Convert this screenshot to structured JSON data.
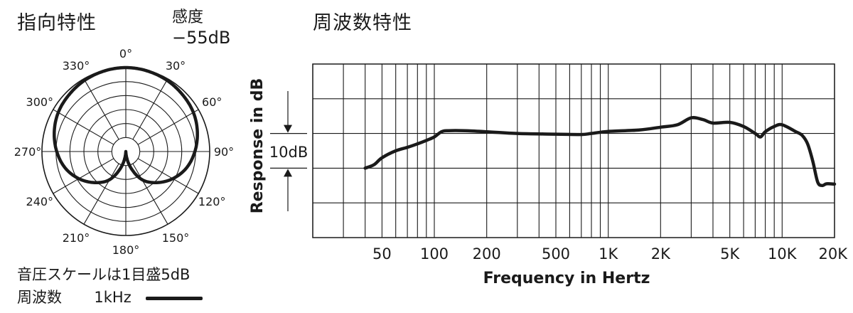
{
  "polar": {
    "title": "指向特性",
    "sensitivity_label": "感度",
    "sensitivity_value": "−55dB",
    "scale_note": "音圧スケールは1目盛5dB",
    "legend_freq_label": "周波数",
    "legend_freq_value": "1kHz"
  },
  "frequency": {
    "title": "周波数特性"
  },
  "chart_data": [
    {
      "type": "polar",
      "title": "指向特性",
      "angle_labels": [
        "0°",
        "30°",
        "60°",
        "90°",
        "120°",
        "150°",
        "180°",
        "210°",
        "240°",
        "270°",
        "300°",
        "330°"
      ],
      "angles_deg": [
        0,
        30,
        60,
        90,
        120,
        150,
        180,
        210,
        240,
        270,
        300,
        330
      ],
      "rings": 6,
      "ring_step_db": 5,
      "series": [
        {
          "angles_deg": [
            0,
            15,
            30,
            45,
            60,
            75,
            90,
            105,
            120,
            135,
            150,
            165,
            180,
            195,
            210,
            225,
            240,
            255,
            270,
            285,
            300,
            315,
            330,
            345
          ],
          "level_db": [
            0,
            -0.2,
            -0.6,
            -1.3,
            -2.1,
            -3.5,
            -5.3,
            -7.5,
            -10.6,
            -14.3,
            -18.4,
            -24.8,
            -30,
            -24.8,
            -18.4,
            -14.3,
            -10.6,
            -7.5,
            -5.3,
            -3.5,
            -2.1,
            -1.3,
            -0.6,
            -0.2
          ]
        }
      ],
      "color": "#1a1a1a"
    },
    {
      "type": "line",
      "title": "周波数特性",
      "xlabel": "Frequency in Hertz",
      "ylabel": "Response in dB",
      "x_scale": "log",
      "xlim": [
        20,
        20000
      ],
      "x_tick_labels": [
        {
          "value": 50,
          "label": "50"
        },
        {
          "value": 100,
          "label": "100"
        },
        {
          "value": 200,
          "label": "200"
        },
        {
          "value": 500,
          "label": "500"
        },
        {
          "value": 1000,
          "label": "1K"
        },
        {
          "value": 2000,
          "label": "2K"
        },
        {
          "value": 5000,
          "label": "5K"
        },
        {
          "value": 10000,
          "label": "10K"
        },
        {
          "value": 20000,
          "label": "20K"
        }
      ],
      "x_gridlines": [
        20,
        30,
        40,
        50,
        60,
        70,
        80,
        90,
        100,
        200,
        300,
        400,
        500,
        600,
        700,
        800,
        900,
        1000,
        2000,
        3000,
        4000,
        5000,
        6000,
        7000,
        8000,
        9000,
        10000,
        20000
      ],
      "ylim": [
        -20,
        30
      ],
      "y_gridlines": [
        -20,
        -10,
        0,
        10,
        20,
        30
      ],
      "scale_marker": {
        "label": "10dB",
        "from": 0,
        "to": 10
      },
      "grid": true,
      "series": [
        {
          "x": [
            40,
            45,
            50,
            60,
            70,
            80,
            90,
            100,
            110,
            120,
            150,
            200,
            300,
            500,
            700,
            800,
            1000,
            1500,
            2000,
            2500,
            3000,
            3500,
            4000,
            5000,
            6000,
            7000,
            7500,
            8000,
            9000,
            10000,
            12000,
            13000,
            14000,
            15000,
            16000,
            17000,
            18000,
            20000
          ],
          "y": [
            0,
            1,
            3,
            5,
            6,
            7,
            8,
            9,
            10.5,
            10.8,
            10.8,
            10.5,
            10,
            9.8,
            9.7,
            10,
            10.6,
            11,
            11.8,
            12.5,
            14.5,
            14,
            13,
            13.2,
            12,
            10,
            9,
            10.5,
            12,
            12.5,
            10.5,
            9.5,
            7,
            2,
            -4,
            -5,
            -4.5,
            -4.6
          ]
        }
      ],
      "color": "#1a1a1a"
    }
  ]
}
